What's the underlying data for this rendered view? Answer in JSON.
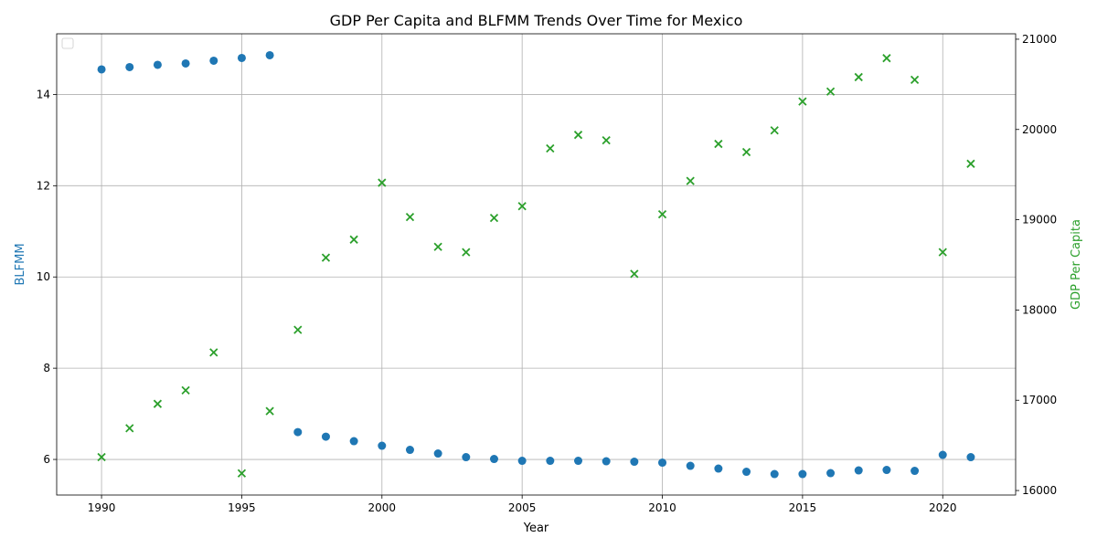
{
  "chart_data": {
    "type": "scatter",
    "title": "GDP Per Capita and BLFMM Trends Over Time for Mexico",
    "xlabel": "Year",
    "ylabel_left": "BLFMM",
    "ylabel_right": "GDP Per Capita",
    "xlim": [
      1988.4,
      2022.6
    ],
    "ylim_left": [
      5.22,
      15.33
    ],
    "ylim_right": [
      15950,
      21060
    ],
    "x_ticks": [
      1990,
      1995,
      2000,
      2005,
      2010,
      2015,
      2020
    ],
    "y_left_ticks": [
      6,
      8,
      10,
      12,
      14
    ],
    "y_right_ticks": [
      16000,
      17000,
      18000,
      19000,
      20000,
      21000
    ],
    "grid": true,
    "legend": {
      "placement": "top-left",
      "entries": []
    },
    "colors": {
      "blfmm": "#1f77b4",
      "gdp": "#2ca02c"
    },
    "x": [
      1990,
      1991,
      1992,
      1993,
      1994,
      1995,
      1996,
      1997,
      1998,
      1999,
      2000,
      2001,
      2002,
      2003,
      2004,
      2005,
      2006,
      2007,
      2008,
      2009,
      2010,
      2011,
      2012,
      2013,
      2014,
      2015,
      2016,
      2017,
      2018,
      2019,
      2020,
      2021
    ],
    "series": [
      {
        "axis": "left",
        "marker": "circle",
        "values": [
          14.55,
          14.6,
          14.65,
          14.68,
          14.74,
          14.8,
          14.86,
          6.6,
          6.5,
          6.4,
          6.3,
          6.21,
          6.13,
          6.05,
          6.01,
          5.97,
          5.97,
          5.97,
          5.96,
          5.95,
          5.93,
          5.86,
          5.8,
          5.73,
          5.68,
          5.68,
          5.7,
          5.76,
          5.77,
          5.75,
          6.1,
          6.05
        ]
      },
      {
        "axis": "right",
        "marker": "x",
        "values": [
          16370,
          16690,
          16960,
          17110,
          17530,
          16190,
          16880,
          17780,
          18580,
          18780,
          19410,
          19030,
          18700,
          18640,
          19020,
          19150,
          19790,
          19940,
          19880,
          18400,
          19060,
          19430,
          19840,
          19750,
          19990,
          20310,
          20420,
          20580,
          20790,
          20550,
          18640,
          19620
        ]
      }
    ]
  }
}
